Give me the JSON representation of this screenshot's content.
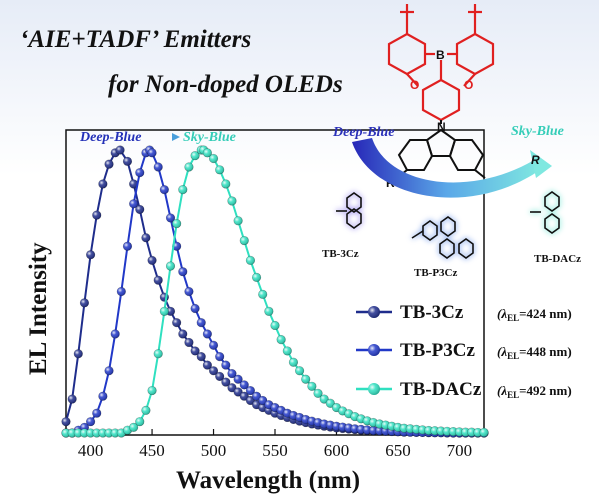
{
  "header": {
    "title_line1": "‘AIE+TADF’ Emitters",
    "title_line2": "for Non-doped OLEDs"
  },
  "plot_arrow": {
    "from_label": "Deep-Blue",
    "to_label": "Sky-Blue"
  },
  "scheme": {
    "from_label": "Deep-Blue",
    "to_label": "Sky-Blue",
    "r_label": "R",
    "atom_b": "B",
    "atom_o": "O",
    "atom_n": "N",
    "molecules": [
      {
        "name": "TB-3Cz",
        "color": "#4b36c8"
      },
      {
        "name": "TB-P3Cz",
        "color": "#2e5fe0"
      },
      {
        "name": "TB-DACz",
        "color": "#22d4b8"
      }
    ]
  },
  "legend": [
    {
      "name": "TB-3Cz",
      "peak_prefix": "(λ",
      "peak_sub": "EL",
      "peak_value": "=424 nm)"
    },
    {
      "name": "TB-P3Cz",
      "peak_prefix": "(λ",
      "peak_sub": "EL",
      "peak_value": "=448 nm)"
    },
    {
      "name": "TB-DACz",
      "peak_prefix": "(λ",
      "peak_sub": "EL",
      "peak_value": "=492 nm)"
    }
  ],
  "chart_data": {
    "type": "line",
    "xlabel": "Wavelength (nm)",
    "ylabel": "EL Intensity",
    "xlim": [
      380,
      720
    ],
    "ylim": [
      0,
      1.05
    ],
    "xticks": [
      400,
      450,
      500,
      550,
      600,
      650,
      700
    ],
    "grid": false,
    "legend_position": "right",
    "series": [
      {
        "name": "TB-3Cz",
        "color": "#1f2d8c",
        "peak_nm": 424,
        "x": [
          380,
          385,
          390,
          395,
          400,
          405,
          410,
          415,
          420,
          424,
          430,
          435,
          440,
          445,
          450,
          455,
          460,
          465,
          470,
          475,
          480,
          485,
          490,
          495,
          500,
          505,
          510,
          515,
          520,
          525,
          530,
          535,
          540,
          545,
          550,
          555,
          560,
          565,
          570,
          575,
          580,
          585,
          590,
          595,
          600,
          605,
          610,
          615,
          620,
          625,
          630,
          635,
          640,
          645,
          650,
          655,
          660,
          665,
          670,
          675,
          680,
          685,
          690,
          695,
          700,
          705,
          710,
          715,
          720
        ],
        "y": [
          0.04,
          0.12,
          0.28,
          0.46,
          0.63,
          0.77,
          0.88,
          0.95,
          0.99,
          1.0,
          0.96,
          0.88,
          0.79,
          0.69,
          0.61,
          0.54,
          0.48,
          0.43,
          0.39,
          0.35,
          0.32,
          0.29,
          0.27,
          0.24,
          0.22,
          0.2,
          0.18,
          0.16,
          0.145,
          0.13,
          0.115,
          0.1,
          0.09,
          0.08,
          0.07,
          0.062,
          0.055,
          0.048,
          0.042,
          0.037,
          0.032,
          0.028,
          0.024,
          0.021,
          0.018,
          0.016,
          0.014,
          0.012,
          0.01,
          0.009,
          0.008,
          0.007,
          0.006,
          0.005,
          0.004,
          0.003,
          0.003,
          0.002,
          0.002,
          0.001,
          0.001,
          0.001,
          0.0,
          0.0,
          0.0,
          0.0,
          0.0,
          0.0,
          0.0
        ]
      },
      {
        "name": "TB-P3Cz",
        "color": "#2138c8",
        "peak_nm": 448,
        "x": [
          380,
          385,
          390,
          395,
          400,
          405,
          410,
          415,
          420,
          425,
          430,
          435,
          440,
          445,
          448,
          450,
          455,
          460,
          465,
          470,
          475,
          480,
          485,
          490,
          495,
          500,
          505,
          510,
          515,
          520,
          525,
          530,
          535,
          540,
          545,
          550,
          555,
          560,
          565,
          570,
          575,
          580,
          585,
          590,
          595,
          600,
          605,
          610,
          615,
          620,
          625,
          630,
          635,
          640,
          645,
          650,
          655,
          660,
          665,
          670,
          675,
          680,
          685,
          690,
          695,
          700,
          705,
          710,
          715,
          720
        ],
        "y": [
          0.0,
          0.0,
          0.01,
          0.02,
          0.04,
          0.07,
          0.13,
          0.22,
          0.35,
          0.5,
          0.66,
          0.81,
          0.92,
          0.99,
          1.0,
          0.99,
          0.94,
          0.86,
          0.76,
          0.66,
          0.57,
          0.5,
          0.44,
          0.39,
          0.35,
          0.31,
          0.27,
          0.24,
          0.21,
          0.19,
          0.17,
          0.15,
          0.13,
          0.115,
          0.1,
          0.09,
          0.08,
          0.07,
          0.062,
          0.055,
          0.048,
          0.042,
          0.037,
          0.032,
          0.028,
          0.024,
          0.021,
          0.018,
          0.015,
          0.013,
          0.011,
          0.009,
          0.008,
          0.007,
          0.006,
          0.005,
          0.004,
          0.003,
          0.003,
          0.002,
          0.002,
          0.001,
          0.001,
          0.001,
          0.0,
          0.0,
          0.0,
          0.0,
          0.0,
          0.0
        ]
      },
      {
        "name": "TB-DACz",
        "color": "#2fe0c0",
        "peak_nm": 492,
        "x": [
          380,
          385,
          390,
          395,
          400,
          405,
          410,
          415,
          420,
          425,
          430,
          435,
          440,
          445,
          450,
          455,
          460,
          465,
          470,
          475,
          480,
          485,
          490,
          492,
          495,
          500,
          505,
          510,
          515,
          520,
          525,
          530,
          535,
          540,
          545,
          550,
          555,
          560,
          565,
          570,
          575,
          580,
          585,
          590,
          595,
          600,
          605,
          610,
          615,
          620,
          625,
          630,
          635,
          640,
          645,
          650,
          655,
          660,
          665,
          670,
          675,
          680,
          685,
          690,
          695,
          700,
          705,
          710,
          715,
          720
        ],
        "y": [
          0.0,
          0.0,
          0.0,
          0.0,
          0.0,
          0.0,
          0.0,
          0.0,
          0.0,
          0.0,
          0.01,
          0.02,
          0.04,
          0.08,
          0.15,
          0.28,
          0.43,
          0.59,
          0.74,
          0.86,
          0.94,
          0.98,
          1.0,
          1.0,
          0.99,
          0.97,
          0.93,
          0.88,
          0.82,
          0.75,
          0.68,
          0.61,
          0.55,
          0.49,
          0.43,
          0.38,
          0.33,
          0.29,
          0.25,
          0.22,
          0.19,
          0.165,
          0.14,
          0.12,
          0.105,
          0.09,
          0.078,
          0.068,
          0.058,
          0.05,
          0.043,
          0.037,
          0.032,
          0.028,
          0.024,
          0.02,
          0.017,
          0.015,
          0.013,
          0.011,
          0.009,
          0.008,
          0.007,
          0.006,
          0.005,
          0.004,
          0.003,
          0.003,
          0.002,
          0.002
        ]
      }
    ]
  }
}
